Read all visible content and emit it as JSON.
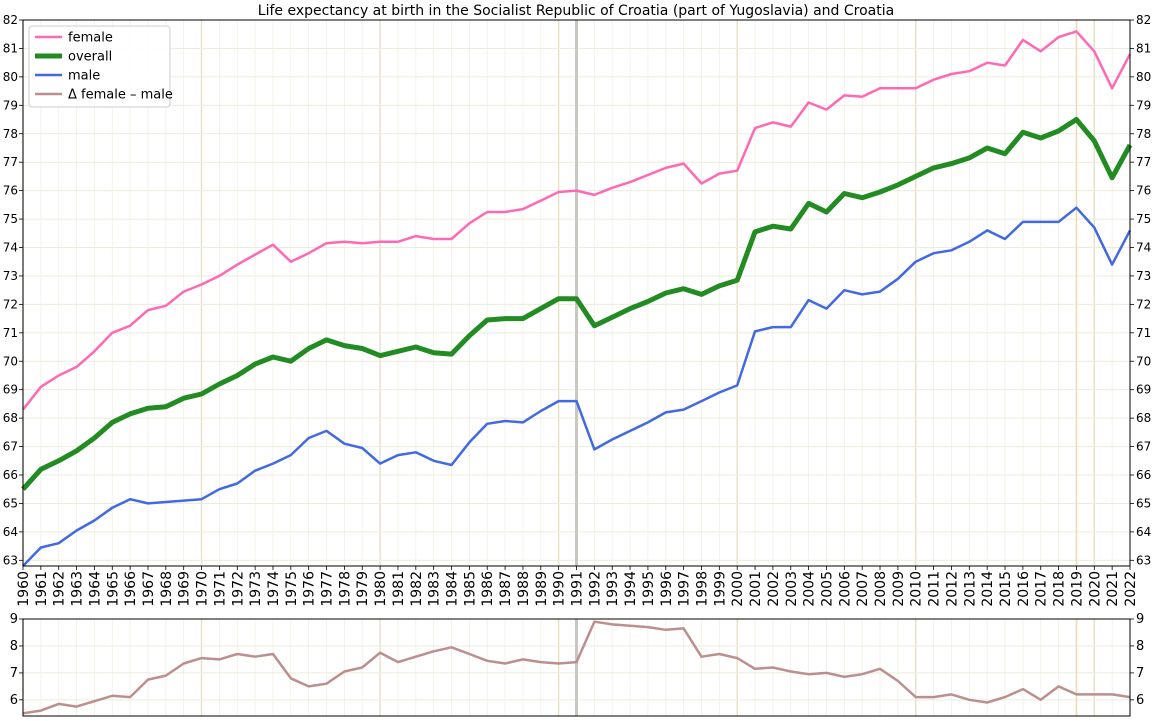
{
  "chart_data": {
    "type": "line",
    "title": "Life expectancy at birth in the Socialist Republic of Croatia (part of Yugoslavia) and Croatia",
    "x": [
      1960,
      1961,
      1962,
      1963,
      1964,
      1965,
      1966,
      1967,
      1968,
      1969,
      1970,
      1971,
      1972,
      1973,
      1974,
      1975,
      1976,
      1977,
      1978,
      1979,
      1980,
      1981,
      1982,
      1983,
      1984,
      1985,
      1986,
      1987,
      1988,
      1989,
      1990,
      1991,
      1992,
      1993,
      1994,
      1995,
      1996,
      1997,
      1998,
      1999,
      2000,
      2001,
      2002,
      2003,
      2004,
      2005,
      2006,
      2007,
      2008,
      2009,
      2010,
      2011,
      2012,
      2013,
      2014,
      2015,
      2016,
      2017,
      2018,
      2019,
      2020,
      2021,
      2022
    ],
    "main_ylim": [
      62.8,
      82
    ],
    "main_yticks": [
      63,
      64,
      65,
      66,
      67,
      68,
      69,
      70,
      71,
      72,
      73,
      74,
      75,
      76,
      77,
      78,
      79,
      80,
      81,
      82
    ],
    "diff_ylim": [
      5.4,
      9
    ],
    "diff_yticks": [
      6,
      7,
      8,
      9
    ],
    "grid": true,
    "legend": "top-left",
    "highlight_years": [
      1991,
      2019
    ],
    "series": [
      {
        "name": "female",
        "color": "#ff69b4",
        "values": [
          68.3,
          69.1,
          69.5,
          69.8,
          70.35,
          71.0,
          71.25,
          71.8,
          71.95,
          72.45,
          72.7,
          73.0,
          73.4,
          73.75,
          74.1,
          73.5,
          73.8,
          74.15,
          74.2,
          74.15,
          74.2,
          74.2,
          74.4,
          74.3,
          74.3,
          74.85,
          75.25,
          75.25,
          75.35,
          75.65,
          75.95,
          76.0,
          75.85,
          76.1,
          76.3,
          76.55,
          76.8,
          76.95,
          76.25,
          76.6,
          76.7,
          78.2,
          78.4,
          78.25,
          79.1,
          78.85,
          79.35,
          79.3,
          79.6,
          79.6,
          79.6,
          79.9,
          80.1,
          80.2,
          80.5,
          80.4,
          81.3,
          80.9,
          81.4,
          81.6,
          80.9,
          79.6,
          80.8
        ]
      },
      {
        "name": "overall",
        "color": "#228b22",
        "values": [
          65.5,
          66.2,
          66.5,
          66.85,
          67.3,
          67.85,
          68.15,
          68.35,
          68.4,
          68.7,
          68.85,
          69.2,
          69.5,
          69.9,
          70.15,
          70.0,
          70.45,
          70.75,
          70.55,
          70.45,
          70.2,
          70.35,
          70.5,
          70.3,
          70.25,
          70.9,
          71.45,
          71.5,
          71.5,
          71.85,
          72.2,
          72.2,
          71.25,
          71.55,
          71.85,
          72.1,
          72.4,
          72.55,
          72.35,
          72.65,
          72.85,
          74.55,
          74.75,
          74.65,
          75.55,
          75.25,
          75.9,
          75.75,
          75.95,
          76.2,
          76.5,
          76.8,
          76.95,
          77.15,
          77.5,
          77.3,
          78.05,
          77.85,
          78.1,
          78.5,
          77.75,
          76.45,
          77.6
        ]
      },
      {
        "name": "male",
        "color": "#4169e1",
        "values": [
          62.8,
          63.45,
          63.6,
          64.05,
          64.4,
          64.85,
          65.15,
          65.0,
          65.05,
          65.1,
          65.15,
          65.5,
          65.7,
          66.15,
          66.4,
          66.7,
          67.3,
          67.55,
          67.1,
          66.95,
          66.4,
          66.7,
          66.8,
          66.5,
          66.35,
          67.15,
          67.8,
          67.9,
          67.85,
          68.25,
          68.6,
          68.6,
          66.9,
          67.25,
          67.55,
          67.85,
          68.2,
          68.3,
          68.6,
          68.9,
          69.15,
          71.05,
          71.2,
          71.2,
          72.15,
          71.85,
          72.5,
          72.35,
          72.45,
          72.9,
          73.5,
          73.8,
          73.9,
          74.2,
          74.6,
          74.3,
          74.9,
          74.9,
          74.9,
          75.4,
          74.7,
          73.4,
          74.6
        ]
      },
      {
        "name": "Δ female – male",
        "color": "#bc8f8f",
        "values": [
          5.5,
          5.6,
          5.85,
          5.75,
          5.95,
          6.15,
          6.1,
          6.75,
          6.9,
          7.35,
          7.55,
          7.5,
          7.7,
          7.6,
          7.7,
          6.8,
          6.5,
          6.6,
          7.05,
          7.2,
          7.75,
          7.4,
          7.6,
          7.8,
          7.95,
          7.7,
          7.45,
          7.35,
          7.5,
          7.4,
          7.35,
          7.4,
          8.9,
          8.8,
          8.75,
          8.7,
          8.6,
          8.65,
          7.6,
          7.7,
          7.55,
          7.15,
          7.2,
          7.05,
          6.95,
          7.0,
          6.85,
          6.95,
          7.15,
          6.7,
          6.1,
          6.1,
          6.2,
          6.0,
          5.9,
          6.1,
          6.4,
          6.0,
          6.5,
          6.2,
          6.2,
          6.2,
          6.1
        ]
      }
    ]
  }
}
